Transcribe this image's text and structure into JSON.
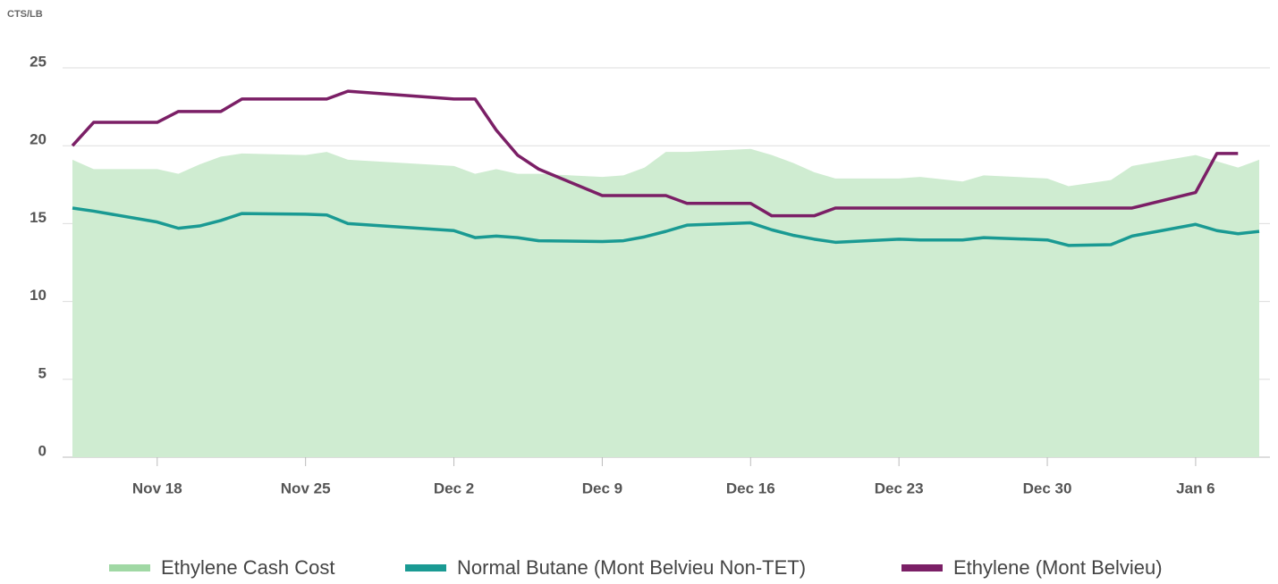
{
  "chart_data": {
    "type": "line",
    "y_axis_label": "CTS/LB",
    "x": [
      "Nov 14",
      "Nov 15",
      "Nov 18",
      "Nov 19",
      "Nov 20",
      "Nov 21",
      "Nov 22",
      "Nov 25",
      "Nov 26",
      "Nov 27",
      "Dec 2",
      "Dec 3",
      "Dec 4",
      "Dec 5",
      "Dec 6",
      "Dec 9",
      "Dec 10",
      "Dec 11",
      "Dec 12",
      "Dec 13",
      "Dec 16",
      "Dec 17",
      "Dec 18",
      "Dec 19",
      "Dec 20",
      "Dec 23",
      "Dec 24",
      "Dec 26",
      "Dec 27",
      "Dec 30",
      "Dec 31",
      "Jan 2",
      "Jan 3",
      "Jan 6",
      "Jan 7",
      "Jan 8",
      "Jan 9"
    ],
    "xlim": [
      "Nov 14",
      "Jan 9"
    ],
    "xticks": [
      "Nov 18",
      "Nov 25",
      "Dec 2",
      "Dec 9",
      "Dec 16",
      "Dec 23",
      "Dec 30",
      "Jan 6"
    ],
    "ylim": [
      0,
      25
    ],
    "yticks": [
      0,
      5,
      10,
      15,
      20,
      25
    ],
    "grid": true,
    "legend": "bottom",
    "series": [
      {
        "name": "Ethylene Cash Cost",
        "type": "area",
        "color": "#a0d8a4",
        "fill": "#cfecd1",
        "values": [
          19.1,
          18.5,
          18.5,
          18.2,
          18.8,
          19.3,
          19.5,
          19.4,
          19.6,
          19.1,
          18.7,
          18.2,
          18.5,
          18.2,
          18.2,
          18.0,
          18.1,
          18.6,
          19.6,
          19.6,
          19.8,
          19.4,
          18.9,
          18.3,
          17.9,
          17.9,
          18.0,
          17.7,
          18.1,
          17.9,
          17.4,
          17.8,
          18.7,
          19.4,
          19.0,
          18.6,
          19.1
        ]
      },
      {
        "name": "Normal Butane (Mont Belvieu Non-TET)",
        "type": "line",
        "color": "#1a9a93",
        "values": [
          16.0,
          15.8,
          15.1,
          14.7,
          14.85,
          15.2,
          15.65,
          15.6,
          15.55,
          15.0,
          14.55,
          14.1,
          14.2,
          14.1,
          13.9,
          13.85,
          13.9,
          14.15,
          14.5,
          14.9,
          15.05,
          14.6,
          14.25,
          14.0,
          13.8,
          14.0,
          13.95,
          13.95,
          14.1,
          13.95,
          13.6,
          13.65,
          14.2,
          14.95,
          14.55,
          14.35,
          14.5
        ]
      },
      {
        "name": "Ethylene (Mont Belvieu)",
        "type": "line",
        "color": "#7b1f66",
        "values": [
          20.0,
          21.5,
          21.5,
          22.2,
          22.2,
          22.2,
          23.0,
          23.0,
          23.0,
          23.5,
          23.0,
          23.0,
          21.0,
          19.4,
          18.5,
          16.8,
          16.8,
          16.8,
          16.8,
          16.3,
          16.3,
          15.5,
          15.5,
          15.5,
          16.0,
          16.0,
          16.0,
          16.0,
          16.0,
          16.0,
          16.0,
          16.0,
          16.0,
          17.0,
          19.5,
          19.5,
          null
        ]
      }
    ]
  }
}
